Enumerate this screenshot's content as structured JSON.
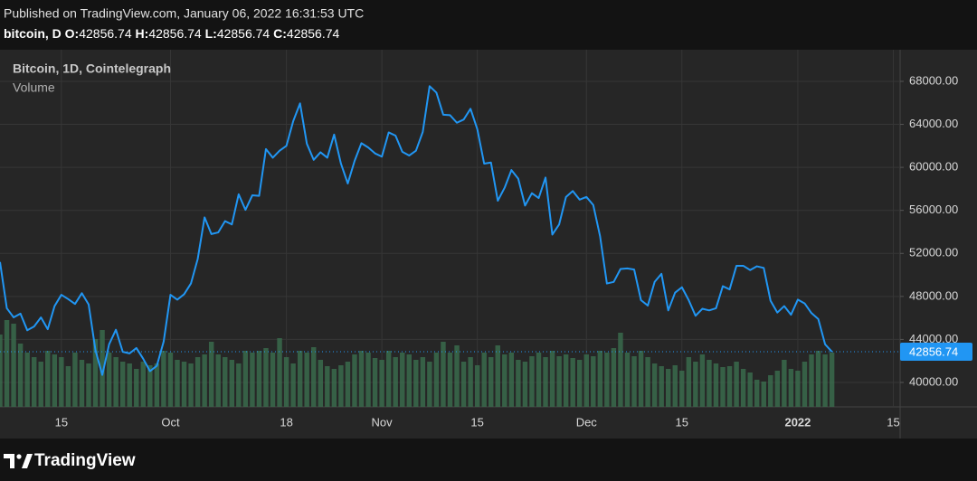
{
  "header": {
    "published": "Published on TradingView.com, January 06, 2022 16:31:53 UTC",
    "symbol": "bitcoin, D",
    "ohlc": [
      {
        "key": "O:",
        "value": 42856.74
      },
      {
        "key": "H:",
        "value": 42856.74
      },
      {
        "key": "L:",
        "value": 42856.74
      },
      {
        "key": "C:",
        "value": 42856.74
      }
    ]
  },
  "chart_data": {
    "type": "line",
    "x": [
      "2021-09-06",
      "2021-09-07",
      "2021-09-08",
      "2021-09-09",
      "2021-09-10",
      "2021-09-11",
      "2021-09-12",
      "2021-09-13",
      "2021-09-14",
      "2021-09-15",
      "2021-09-16",
      "2021-09-17",
      "2021-09-18",
      "2021-09-19",
      "2021-09-20",
      "2021-09-21",
      "2021-09-22",
      "2021-09-23",
      "2021-09-24",
      "2021-09-25",
      "2021-09-26",
      "2021-09-27",
      "2021-09-28",
      "2021-09-29",
      "2021-09-30",
      "2021-10-01",
      "2021-10-02",
      "2021-10-03",
      "2021-10-04",
      "2021-10-05",
      "2021-10-06",
      "2021-10-07",
      "2021-10-08",
      "2021-10-09",
      "2021-10-10",
      "2021-10-11",
      "2021-10-12",
      "2021-10-13",
      "2021-10-14",
      "2021-10-15",
      "2021-10-16",
      "2021-10-17",
      "2021-10-18",
      "2021-10-19",
      "2021-10-20",
      "2021-10-21",
      "2021-10-22",
      "2021-10-23",
      "2021-10-24",
      "2021-10-25",
      "2021-10-26",
      "2021-10-27",
      "2021-10-28",
      "2021-10-29",
      "2021-10-30",
      "2021-10-31",
      "2021-11-01",
      "2021-11-02",
      "2021-11-03",
      "2021-11-04",
      "2021-11-05",
      "2021-11-06",
      "2021-11-07",
      "2021-11-08",
      "2021-11-09",
      "2021-11-10",
      "2021-11-11",
      "2021-11-12",
      "2021-11-13",
      "2021-11-14",
      "2021-11-15",
      "2021-11-16",
      "2021-11-17",
      "2021-11-18",
      "2021-11-19",
      "2021-11-20",
      "2021-11-21",
      "2021-11-22",
      "2021-11-23",
      "2021-11-24",
      "2021-11-25",
      "2021-11-26",
      "2021-11-27",
      "2021-11-28",
      "2021-11-29",
      "2021-11-30",
      "2021-12-01",
      "2021-12-02",
      "2021-12-03",
      "2021-12-04",
      "2021-12-05",
      "2021-12-06",
      "2021-12-07",
      "2021-12-08",
      "2021-12-09",
      "2021-12-10",
      "2021-12-11",
      "2021-12-12",
      "2021-12-13",
      "2021-12-14",
      "2021-12-15",
      "2021-12-16",
      "2021-12-17",
      "2021-12-18",
      "2021-12-19",
      "2021-12-20",
      "2021-12-21",
      "2021-12-22",
      "2021-12-23",
      "2021-12-24",
      "2021-12-25",
      "2021-12-26",
      "2021-12-27",
      "2021-12-28",
      "2021-12-29",
      "2021-12-30",
      "2021-12-31",
      "2022-01-01",
      "2022-01-02",
      "2022-01-03",
      "2022-01-04",
      "2022-01-05",
      "2022-01-06"
    ],
    "series": [
      {
        "name": "Bitcoin, 1D, Cointelegraph",
        "color": "#2196f3",
        "values": [
          51200,
          46900,
          46050,
          46400,
          44850,
          45200,
          46050,
          44950,
          47100,
          48150,
          47750,
          47300,
          48300,
          47250,
          43000,
          40700,
          43550,
          44900,
          42850,
          42700,
          43200,
          42200,
          41050,
          41550,
          43800,
          48150,
          47700,
          48200,
          49200,
          51500,
          55350,
          53800,
          53950,
          55000,
          54700,
          57500,
          56050,
          57400,
          57350,
          61700,
          60900,
          61550,
          62000,
          64300,
          65950,
          62200,
          60700,
          61400,
          60900,
          63050,
          60350,
          58500,
          60600,
          62250,
          61850,
          61300,
          61000,
          63250,
          62950,
          61450,
          61100,
          61550,
          63300,
          67550,
          66950,
          64900,
          64850,
          64150,
          64450,
          65450,
          63550,
          60350,
          60450,
          56900,
          58100,
          59750,
          58950,
          56450,
          57600,
          57150,
          59050,
          53750,
          54700,
          57250,
          57800,
          57000,
          57250,
          56500,
          53600,
          49200,
          49350,
          50550,
          50600,
          50500,
          47650,
          47150,
          49350,
          50100,
          46700,
          48350,
          48850,
          47650,
          46200,
          46850,
          46700,
          46900,
          48950,
          48650,
          50850,
          50850,
          50450,
          50800,
          50650,
          47600,
          46500,
          47100,
          46300,
          47700,
          47350,
          46450,
          45900,
          43550,
          42856.74
        ]
      },
      {
        "name": "Volume",
        "type": "bar",
        "axis": "y2",
        "color": "#3a6b4c",
        "values": [
          80,
          96,
          92,
          70,
          60,
          55,
          50,
          62,
          58,
          55,
          45,
          60,
          52,
          48,
          75,
          85,
          60,
          55,
          50,
          48,
          42,
          50,
          46,
          48,
          62,
          60,
          52,
          50,
          48,
          55,
          58,
          72,
          58,
          55,
          52,
          48,
          62,
          60,
          62,
          65,
          60,
          76,
          55,
          48,
          62,
          60,
          66,
          52,
          45,
          42,
          46,
          50,
          58,
          62,
          60,
          54,
          52,
          62,
          55,
          60,
          58,
          52,
          55,
          50,
          60,
          72,
          60,
          68,
          50,
          55,
          46,
          60,
          55,
          68,
          58,
          60,
          52,
          50,
          56,
          60,
          55,
          62,
          56,
          58,
          54,
          52,
          58,
          56,
          62,
          60,
          65,
          82,
          60,
          56,
          62,
          55,
          48,
          45,
          42,
          46,
          40,
          55,
          50,
          58,
          52,
          48,
          44,
          45,
          50,
          42,
          38,
          30,
          28,
          35,
          40,
          52,
          42,
          40,
          50,
          58,
          62,
          58,
          60
        ]
      }
    ],
    "xlim": [
      "2021-09-06",
      "2022-01-16"
    ],
    "xticks": [
      {
        "value": "2021-09-15",
        "label": "15"
      },
      {
        "value": "2021-10-01",
        "label": "Oct"
      },
      {
        "value": "2021-10-18",
        "label": "18"
      },
      {
        "value": "2021-11-01",
        "label": "Nov"
      },
      {
        "value": "2021-11-15",
        "label": "15"
      },
      {
        "value": "2021-12-01",
        "label": "Dec"
      },
      {
        "value": "2021-12-15",
        "label": "15"
      },
      {
        "value": "2022-01-01",
        "label": "2022"
      },
      {
        "value": "2022-01-15",
        "label": "15"
      }
    ],
    "ylim": [
      37730,
      70940
    ],
    "yticks": [
      {
        "value": 40000,
        "label": "40000.00"
      },
      {
        "value": 44000,
        "label": "44000.00"
      },
      {
        "value": 48000,
        "label": "48000.00"
      },
      {
        "value": 52000,
        "label": "52000.00"
      },
      {
        "value": 56000,
        "label": "56000.00"
      },
      {
        "value": 60000,
        "label": "60000.00"
      },
      {
        "value": 64000,
        "label": "64000.00"
      },
      {
        "value": 68000,
        "label": "68000.00"
      }
    ],
    "y2lim": [
      0,
      395
    ],
    "grid": true
  },
  "footer": {
    "brand": "TradingView"
  }
}
